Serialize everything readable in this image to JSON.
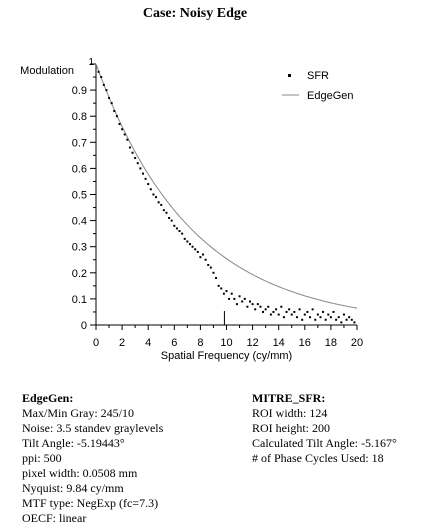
{
  "title": "Case:  Noisy Edge",
  "chart_data": {
    "type": "scatter",
    "title": "Case:  Noisy Edge",
    "xlabel": "Spatial Frequency (cy/mm)",
    "ylabel": "Modulation",
    "xlim": [
      0,
      20
    ],
    "ylim": [
      0,
      1
    ],
    "x_ticks": [
      "0",
      "2",
      "4",
      "6",
      "8",
      "10",
      "12",
      "14",
      "16",
      "18",
      "20"
    ],
    "y_ticks": [
      "0",
      "0.1",
      "0.2",
      "0.3",
      "0.4",
      "0.5",
      "0.6",
      "0.7",
      "0.8",
      "0.9",
      "1"
    ],
    "grid": false,
    "legend_position": "top-right",
    "nyquist_marker_x": 9.84,
    "series": [
      {
        "name": "SFR",
        "style": "dots",
        "x": [
          0.2,
          0.4,
          0.6,
          0.8,
          1.0,
          1.2,
          1.4,
          1.6,
          1.8,
          2.0,
          2.2,
          2.4,
          2.6,
          2.8,
          3.0,
          3.2,
          3.4,
          3.6,
          3.8,
          4.0,
          4.2,
          4.4,
          4.6,
          4.8,
          5.0,
          5.2,
          5.4,
          5.6,
          5.8,
          6.0,
          6.2,
          6.4,
          6.6,
          6.8,
          7.0,
          7.2,
          7.4,
          7.6,
          7.8,
          8.0,
          8.2,
          8.4,
          8.6,
          8.8,
          9.0,
          9.2,
          9.4,
          9.6,
          9.8,
          10.0,
          10.2,
          10.4,
          10.6,
          10.8,
          11.0,
          11.2,
          11.4,
          11.6,
          11.8,
          12.0,
          12.2,
          12.4,
          12.6,
          12.8,
          13.0,
          13.2,
          13.4,
          13.6,
          13.8,
          14.0,
          14.2,
          14.4,
          14.6,
          14.8,
          15.0,
          15.2,
          15.4,
          15.6,
          15.8,
          16.0,
          16.2,
          16.4,
          16.6,
          16.8,
          17.0,
          17.2,
          17.4,
          17.6,
          17.8,
          18.0,
          18.2,
          18.4,
          18.6,
          18.8,
          19.0,
          19.2,
          19.4,
          19.6,
          19.8
        ],
        "values": [
          0.97,
          0.95,
          0.92,
          0.9,
          0.87,
          0.85,
          0.82,
          0.8,
          0.77,
          0.75,
          0.73,
          0.71,
          0.68,
          0.66,
          0.64,
          0.62,
          0.6,
          0.58,
          0.56,
          0.54,
          0.52,
          0.5,
          0.49,
          0.47,
          0.46,
          0.44,
          0.43,
          0.41,
          0.4,
          0.38,
          0.37,
          0.36,
          0.35,
          0.33,
          0.32,
          0.31,
          0.3,
          0.29,
          0.28,
          0.26,
          0.27,
          0.25,
          0.23,
          0.22,
          0.2,
          0.18,
          0.15,
          0.14,
          0.12,
          0.13,
          0.1,
          0.12,
          0.1,
          0.08,
          0.11,
          0.09,
          0.1,
          0.07,
          0.09,
          0.08,
          0.06,
          0.08,
          0.07,
          0.05,
          0.06,
          0.07,
          0.04,
          0.05,
          0.06,
          0.04,
          0.07,
          0.03,
          0.05,
          0.06,
          0.04,
          0.05,
          0.03,
          0.06,
          0.02,
          0.04,
          0.05,
          0.03,
          0.06,
          0.02,
          0.04,
          0.03,
          0.05,
          0.02,
          0.04,
          0.03,
          0.05,
          0.02,
          0.03,
          0.01,
          0.04,
          0.02,
          0.03,
          0.02,
          0.01
        ]
      },
      {
        "name": "EdgeGen",
        "style": "line",
        "function": "NegExp",
        "fc": 7.3
      }
    ]
  },
  "info_left": {
    "heading": "EdgeGen:",
    "lines": [
      "Max/Min Gray:  245/10",
      "Noise: 3.5 standev graylevels",
      "Tilt Angle: -5.19443°",
      "ppi: 500",
      "pixel width:  0.0508 mm",
      "Nyquist: 9.84 cy/mm",
      "MTF type: NegExp (fc=7.3)",
      "OECF: linear"
    ]
  },
  "info_right": {
    "heading": "MITRE_SFR:",
    "lines": [
      "ROI width:  124",
      "ROI height:  200",
      "Calculated Tilt Angle: -5.167°",
      "# of Phase Cycles Used: 18"
    ]
  }
}
